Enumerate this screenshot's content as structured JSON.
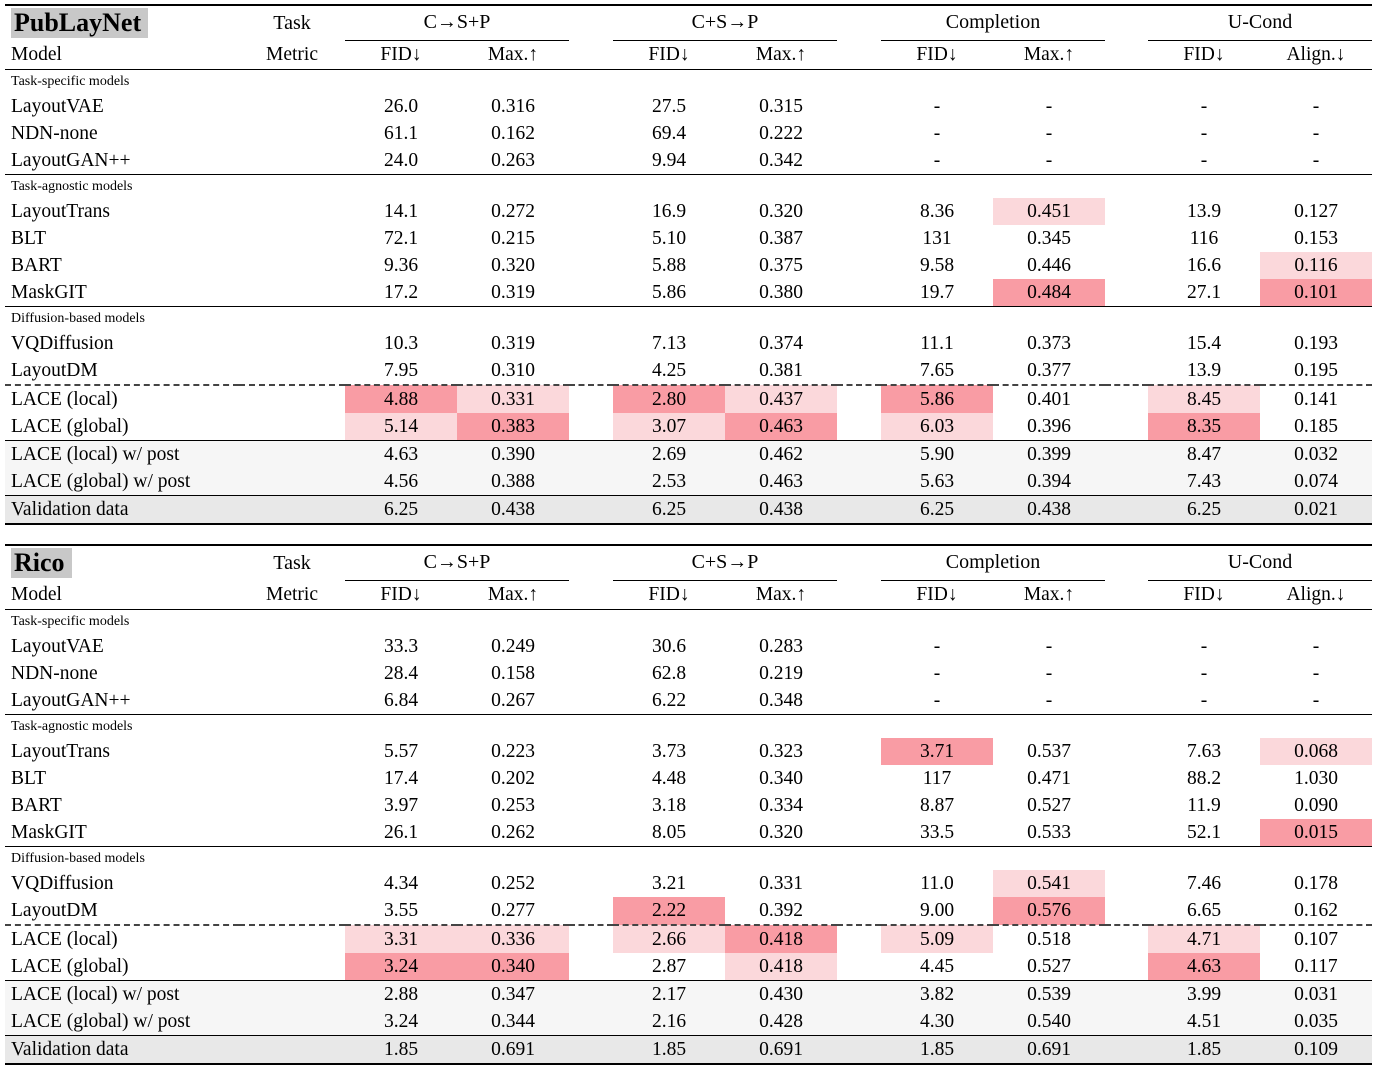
{
  "styles": {
    "highlight_light": "#fbd8db",
    "highlight_strong": "#f99ca4",
    "dataset_badge_bg": "#c8c8c8",
    "post_row_bg": "#f6f6f6",
    "validation_row_bg": "#e8e8e8"
  },
  "tables": [
    {
      "id": "publaynet",
      "dataset": "PubLayNet",
      "task_label": "Task",
      "model_label": "Model",
      "metric_label": "Metric",
      "groups": [
        "C→S+P",
        "C+S→P",
        "Completion",
        "U-Cond"
      ],
      "metrics": [
        "FID↓",
        "Max.↑",
        "FID↓",
        "Max.↑",
        "FID↓",
        "Max.↑",
        "FID↓",
        "Align.↓"
      ],
      "sections": [
        {
          "label": "Task-specific models",
          "rows": [
            {
              "model": "LayoutVAE",
              "values": [
                "26.0",
                "0.316",
                "27.5",
                "0.315",
                "-",
                "-",
                "-",
                "-"
              ]
            },
            {
              "model": "NDN-none",
              "values": [
                "61.1",
                "0.162",
                "69.4",
                "0.222",
                "-",
                "-",
                "-",
                "-"
              ]
            },
            {
              "model": "LayoutGAN++",
              "values": [
                "24.0",
                "0.263",
                "9.94",
                "0.342",
                "-",
                "-",
                "-",
                "-"
              ]
            }
          ]
        },
        {
          "label": "Task-agnostic models",
          "rows": [
            {
              "model": "LayoutTrans",
              "values": [
                "14.1",
                "0.272",
                "16.9",
                "0.320",
                "8.36",
                "0.451",
                "13.9",
                "0.127"
              ],
              "highlights": [
                0,
                0,
                0,
                0,
                0,
                1,
                0,
                0
              ]
            },
            {
              "model": "BLT",
              "values": [
                "72.1",
                "0.215",
                "5.10",
                "0.387",
                "131",
                "0.345",
                "116",
                "0.153"
              ]
            },
            {
              "model": "BART",
              "values": [
                "9.36",
                "0.320",
                "5.88",
                "0.375",
                "9.58",
                "0.446",
                "16.6",
                "0.116"
              ],
              "highlights": [
                0,
                0,
                0,
                0,
                0,
                0,
                0,
                1
              ]
            },
            {
              "model": "MaskGIT",
              "values": [
                "17.2",
                "0.319",
                "5.86",
                "0.380",
                "19.7",
                "0.484",
                "27.1",
                "0.101"
              ],
              "highlights": [
                0,
                0,
                0,
                0,
                0,
                2,
                0,
                2
              ]
            }
          ]
        },
        {
          "label": "Diffusion-based models",
          "rows": [
            {
              "model": "VQDiffusion",
              "values": [
                "10.3",
                "0.319",
                "7.13",
                "0.374",
                "11.1",
                "0.373",
                "15.4",
                "0.193"
              ]
            },
            {
              "model": "LayoutDM",
              "values": [
                "7.95",
                "0.310",
                "4.25",
                "0.381",
                "7.65",
                "0.377",
                "13.9",
                "0.195"
              ]
            },
            {
              "model": "LACE (local)",
              "values": [
                "4.88",
                "0.331",
                "2.80",
                "0.437",
                "5.86",
                "0.401",
                "8.45",
                "0.141"
              ],
              "highlights": [
                2,
                1,
                2,
                1,
                2,
                0,
                1,
                0
              ],
              "dashed_top": true
            },
            {
              "model": "LACE (global)",
              "values": [
                "5.14",
                "0.383",
                "3.07",
                "0.463",
                "6.03",
                "0.396",
                "8.35",
                "0.185"
              ],
              "highlights": [
                1,
                2,
                1,
                2,
                1,
                0,
                2,
                0
              ]
            }
          ]
        },
        {
          "label": null,
          "rows": [
            {
              "model": "LACE (local) w/ post",
              "values": [
                "4.63",
                "0.390",
                "2.69",
                "0.462",
                "5.90",
                "0.399",
                "8.47",
                "0.032"
              ],
              "bg": "gray"
            },
            {
              "model": "LACE (global) w/ post",
              "values": [
                "4.56",
                "0.388",
                "2.53",
                "0.463",
                "5.63",
                "0.394",
                "7.43",
                "0.074"
              ],
              "bg": "gray"
            }
          ]
        },
        {
          "label": null,
          "rows": [
            {
              "model": "Validation data",
              "values": [
                "6.25",
                "0.438",
                "6.25",
                "0.438",
                "6.25",
                "0.438",
                "6.25",
                "0.021"
              ],
              "bg": "validation"
            }
          ]
        }
      ]
    },
    {
      "id": "rico",
      "dataset": "Rico",
      "task_label": "Task",
      "model_label": "Model",
      "metric_label": "Metric",
      "groups": [
        "C→S+P",
        "C+S→P",
        "Completion",
        "U-Cond"
      ],
      "metrics": [
        "FID↓",
        "Max.↑",
        "FID↓",
        "Max.↑",
        "FID↓",
        "Max.↑",
        "FID↓",
        "Align.↓"
      ],
      "sections": [
        {
          "label": "Task-specific models",
          "rows": [
            {
              "model": "LayoutVAE",
              "values": [
                "33.3",
                "0.249",
                "30.6",
                "0.283",
                "-",
                "-",
                "-",
                "-"
              ]
            },
            {
              "model": "NDN-none",
              "values": [
                "28.4",
                "0.158",
                "62.8",
                "0.219",
                "-",
                "-",
                "-",
                "-"
              ]
            },
            {
              "model": "LayoutGAN++",
              "values": [
                "6.84",
                "0.267",
                "6.22",
                "0.348",
                "-",
                "-",
                "-",
                "-"
              ]
            }
          ]
        },
        {
          "label": "Task-agnostic models",
          "rows": [
            {
              "model": "LayoutTrans",
              "values": [
                "5.57",
                "0.223",
                "3.73",
                "0.323",
                "3.71",
                "0.537",
                "7.63",
                "0.068"
              ],
              "highlights": [
                0,
                0,
                0,
                0,
                2,
                0,
                0,
                1
              ]
            },
            {
              "model": "BLT",
              "values": [
                "17.4",
                "0.202",
                "4.48",
                "0.340",
                "117",
                "0.471",
                "88.2",
                "1.030"
              ]
            },
            {
              "model": "BART",
              "values": [
                "3.97",
                "0.253",
                "3.18",
                "0.334",
                "8.87",
                "0.527",
                "11.9",
                "0.090"
              ]
            },
            {
              "model": "MaskGIT",
              "values": [
                "26.1",
                "0.262",
                "8.05",
                "0.320",
                "33.5",
                "0.533",
                "52.1",
                "0.015"
              ],
              "highlights": [
                0,
                0,
                0,
                0,
                0,
                0,
                0,
                2
              ]
            }
          ]
        },
        {
          "label": "Diffusion-based models",
          "rows": [
            {
              "model": "VQDiffusion",
              "values": [
                "4.34",
                "0.252",
                "3.21",
                "0.331",
                "11.0",
                "0.541",
                "7.46",
                "0.178"
              ],
              "highlights": [
                0,
                0,
                0,
                0,
                0,
                1,
                0,
                0
              ]
            },
            {
              "model": "LayoutDM",
              "values": [
                "3.55",
                "0.277",
                "2.22",
                "0.392",
                "9.00",
                "0.576",
                "6.65",
                "0.162"
              ],
              "highlights": [
                0,
                0,
                2,
                0,
                0,
                2,
                0,
                0
              ]
            },
            {
              "model": "LACE (local)",
              "values": [
                "3.31",
                "0.336",
                "2.66",
                "0.418",
                "5.09",
                "0.518",
                "4.71",
                "0.107"
              ],
              "highlights": [
                1,
                1,
                1,
                2,
                1,
                0,
                1,
                0
              ],
              "dashed_top": true
            },
            {
              "model": "LACE (global)",
              "values": [
                "3.24",
                "0.340",
                "2.87",
                "0.418",
                "4.45",
                "0.527",
                "4.63",
                "0.117"
              ],
              "highlights": [
                2,
                2,
                0,
                1,
                0,
                0,
                2,
                0
              ]
            }
          ]
        },
        {
          "label": null,
          "rows": [
            {
              "model": "LACE (local) w/ post",
              "values": [
                "2.88",
                "0.347",
                "2.17",
                "0.430",
                "3.82",
                "0.539",
                "3.99",
                "0.031"
              ],
              "bg": "gray"
            },
            {
              "model": "LACE (global) w/ post",
              "values": [
                "3.24",
                "0.344",
                "2.16",
                "0.428",
                "4.30",
                "0.540",
                "4.51",
                "0.035"
              ],
              "bg": "gray"
            }
          ]
        },
        {
          "label": null,
          "rows": [
            {
              "model": "Validation data",
              "values": [
                "1.85",
                "0.691",
                "1.85",
                "0.691",
                "1.85",
                "0.691",
                "1.85",
                "0.109"
              ],
              "bg": "validation"
            }
          ]
        }
      ]
    }
  ]
}
